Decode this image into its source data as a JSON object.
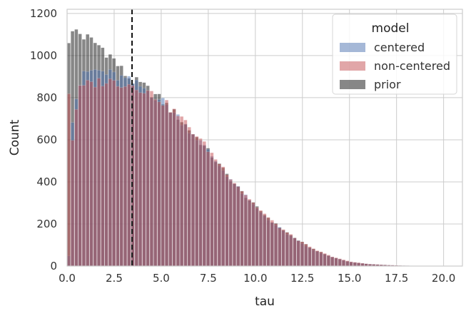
{
  "chart_data": {
    "type": "histogram",
    "xlabel": "tau",
    "ylabel": "Count",
    "xlim": [
      0,
      21
    ],
    "ylim": [
      0,
      1220
    ],
    "x_ticks": [
      "0.0",
      "2.5",
      "5.0",
      "7.5",
      "10.0",
      "12.5",
      "15.0",
      "17.5",
      "20.0"
    ],
    "x_tick_values": [
      0,
      2.5,
      5,
      7.5,
      10,
      12.5,
      15,
      17.5,
      20
    ],
    "y_ticks": [
      "0",
      "200",
      "400",
      "600",
      "800",
      "1000",
      "1200"
    ],
    "y_tick_values": [
      0,
      200,
      400,
      600,
      800,
      1000,
      1200
    ],
    "bin_width": 0.2,
    "grid": true,
    "vline": {
      "x": 3.45,
      "style": "dashed",
      "color": "#111111"
    },
    "legend": {
      "title": "model",
      "placement": "top-right",
      "entries": [
        {
          "name": "centered",
          "color": "#4c72b0"
        },
        {
          "name": "non-centered",
          "color": "#c44e52"
        },
        {
          "name": "prior",
          "color": "#303030"
        }
      ]
    },
    "series": [
      {
        "name": "prior",
        "color": "#303030",
        "opacity": 0.58,
        "anchors": [
          [
            0.1,
            1080
          ],
          [
            0.5,
            1120
          ],
          [
            1.0,
            1085
          ],
          [
            1.5,
            1060
          ],
          [
            2.0,
            1030
          ],
          [
            2.5,
            980
          ],
          [
            3.0,
            920
          ],
          [
            3.5,
            880
          ],
          [
            4.0,
            860
          ],
          [
            5.0,
            790
          ],
          [
            6.0,
            700
          ],
          [
            7.0,
            600
          ],
          [
            8.0,
            490
          ],
          [
            9.0,
            380
          ],
          [
            10.0,
            285
          ],
          [
            11.0,
            205
          ],
          [
            12.0,
            140
          ],
          [
            13.0,
            85
          ],
          [
            14.0,
            45
          ],
          [
            15.0,
            20
          ],
          [
            16.0,
            10
          ],
          [
            17.0,
            5
          ],
          [
            18.0,
            2
          ],
          [
            20.0,
            0
          ]
        ]
      },
      {
        "name": "centered",
        "color": "#4c72b0",
        "opacity": 0.5,
        "anchors": [
          [
            0.1,
            50
          ],
          [
            0.3,
            700
          ],
          [
            0.6,
            850
          ],
          [
            1.0,
            920
          ],
          [
            1.5,
            930
          ],
          [
            2.0,
            920
          ],
          [
            2.5,
            905
          ],
          [
            3.0,
            890
          ],
          [
            3.5,
            870
          ],
          [
            4.0,
            850
          ],
          [
            5.0,
            790
          ],
          [
            6.0,
            700
          ],
          [
            7.0,
            600
          ],
          [
            8.0,
            490
          ],
          [
            9.0,
            380
          ],
          [
            10.0,
            280
          ],
          [
            11.0,
            200
          ],
          [
            12.0,
            135
          ],
          [
            13.0,
            80
          ],
          [
            14.0,
            45
          ],
          [
            15.0,
            20
          ],
          [
            16.0,
            10
          ],
          [
            17.0,
            5
          ],
          [
            18.0,
            2
          ],
          [
            20.0,
            0
          ]
        ]
      },
      {
        "name": "non-centered",
        "color": "#c44e52",
        "opacity": 0.5,
        "anchors": [
          [
            0.1,
            830
          ],
          [
            0.3,
            600
          ],
          [
            0.6,
            830
          ],
          [
            1.0,
            860
          ],
          [
            1.5,
            870
          ],
          [
            2.0,
            880
          ],
          [
            2.5,
            875
          ],
          [
            3.0,
            870
          ],
          [
            3.5,
            860
          ],
          [
            4.0,
            845
          ],
          [
            5.0,
            790
          ],
          [
            6.0,
            710
          ],
          [
            7.0,
            610
          ],
          [
            8.0,
            500
          ],
          [
            9.0,
            390
          ],
          [
            10.0,
            290
          ],
          [
            11.0,
            205
          ],
          [
            12.0,
            140
          ],
          [
            13.0,
            85
          ],
          [
            14.0,
            48
          ],
          [
            15.0,
            22
          ],
          [
            16.0,
            10
          ],
          [
            17.0,
            5
          ],
          [
            18.0,
            2
          ],
          [
            20.0,
            0
          ]
        ]
      }
    ]
  }
}
